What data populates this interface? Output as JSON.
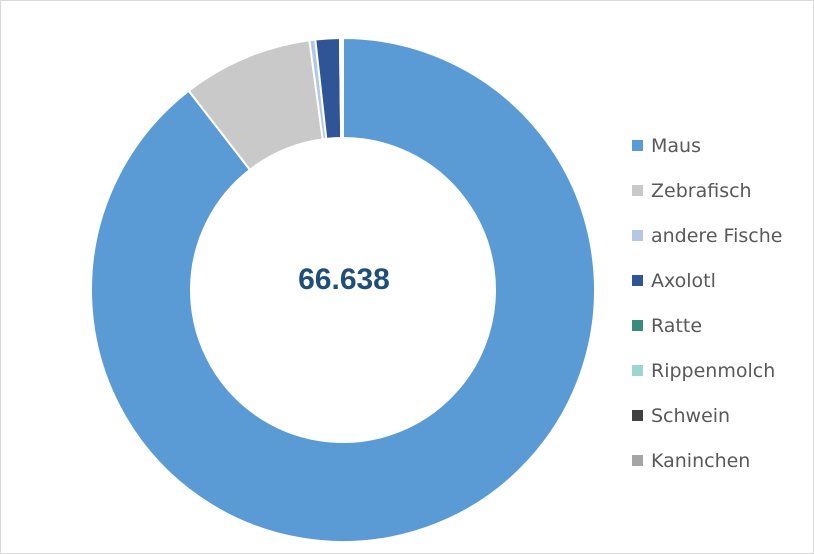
{
  "chart_data": {
    "type": "pie",
    "donut": true,
    "center_label": "66.638",
    "legend_position": "right",
    "grid": false,
    "categories": [
      "Maus",
      "Zebrafisch",
      "andere Fische",
      "Axolotl",
      "Ratte",
      "Rippenmolch",
      "Schwein",
      "Kaninchen"
    ],
    "values": [
      59650,
      5570,
      250,
      1040,
      28,
      50,
      25,
      25
    ],
    "colors": [
      "#5b9bd5",
      "#c9c9c9",
      "#b4c7e7",
      "#2f5597",
      "#3a8c7a",
      "#9dd6cf",
      "#404040",
      "#a5a5a5"
    ]
  }
}
